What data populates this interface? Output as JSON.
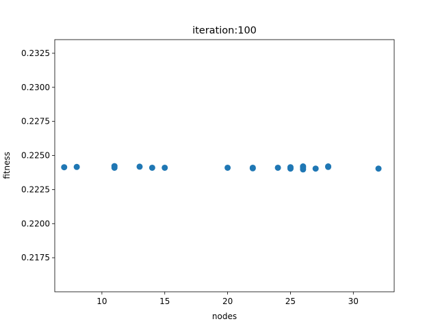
{
  "chart_data": {
    "type": "scatter",
    "title": "iteration:100",
    "xlabel": "nodes",
    "ylabel": "fitness",
    "xlim": [
      6.25,
      33.25
    ],
    "ylim": [
      0.215,
      0.2335
    ],
    "xticks": [
      10,
      15,
      20,
      25,
      30
    ],
    "xtick_labels": [
      "10",
      "15",
      "20",
      "25",
      "30"
    ],
    "yticks": [
      0.2175,
      0.22,
      0.2225,
      0.225,
      0.2275,
      0.23,
      0.2325
    ],
    "ytick_labels": [
      "0.2175",
      "0.2200",
      "0.2225",
      "0.2250",
      "0.2275",
      "0.2300",
      "0.2325"
    ],
    "grid": false,
    "marker_color": "#1f77b4",
    "points": [
      {
        "x": 7,
        "y": 0.22414
      },
      {
        "x": 8,
        "y": 0.22416
      },
      {
        "x": 11,
        "y": 0.22422
      },
      {
        "x": 11,
        "y": 0.2241
      },
      {
        "x": 13,
        "y": 0.22418
      },
      {
        "x": 14,
        "y": 0.2241
      },
      {
        "x": 15,
        "y": 0.2241
      },
      {
        "x": 20,
        "y": 0.2241
      },
      {
        "x": 22,
        "y": 0.2241
      },
      {
        "x": 22,
        "y": 0.22406
      },
      {
        "x": 24,
        "y": 0.2241
      },
      {
        "x": 25,
        "y": 0.22414
      },
      {
        "x": 25,
        "y": 0.22404
      },
      {
        "x": 26,
        "y": 0.2242
      },
      {
        "x": 26,
        "y": 0.2241
      },
      {
        "x": 26,
        "y": 0.22398
      },
      {
        "x": 27,
        "y": 0.22404
      },
      {
        "x": 28,
        "y": 0.2242
      },
      {
        "x": 28,
        "y": 0.22416
      },
      {
        "x": 32,
        "y": 0.22404
      }
    ]
  }
}
